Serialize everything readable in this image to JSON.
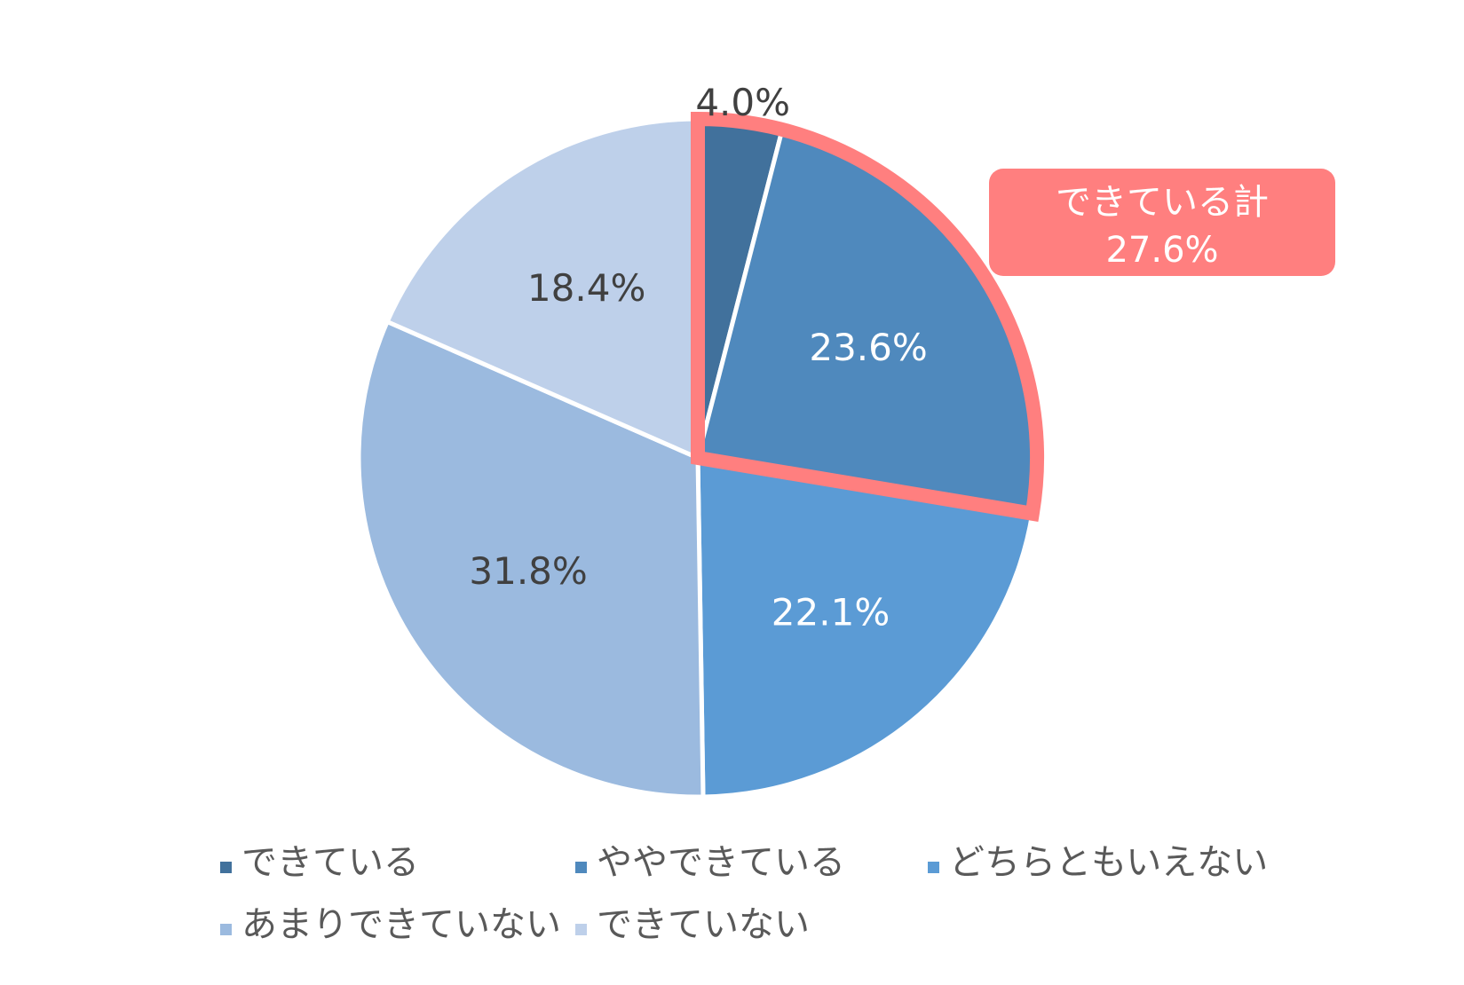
{
  "chart_data": {
    "type": "pie",
    "categories": [
      "できている",
      "ややできている",
      "どちらともいえない",
      "あまりできていない",
      "できていない"
    ],
    "values": [
      4.0,
      23.6,
      22.1,
      31.8,
      18.4
    ],
    "value_labels": [
      "4.0%",
      "23.6%",
      "22.1%",
      "31.8%",
      "18.4%"
    ],
    "colors": [
      "#41719c",
      "#4f89bd",
      "#5b9bd5",
      "#9bbadf",
      "#bed0ea"
    ],
    "label_colors": [
      "#404040",
      "#ffffff",
      "#ffffff",
      "#404040",
      "#404040"
    ],
    "legend_position": "bottom",
    "start_angle_deg": 0,
    "direction": "clockwise",
    "highlight": {
      "series_indices": [
        0,
        1
      ],
      "label_line1": "できている計",
      "label_line2": "27.6%",
      "color": "#ff7f7f"
    }
  }
}
